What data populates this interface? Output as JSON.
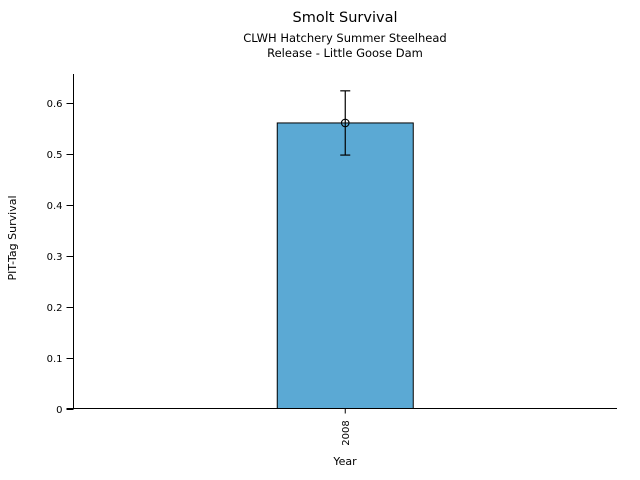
{
  "chart_data": {
    "type": "bar",
    "title": "Smolt Survival",
    "subtitle": [
      "CLWH Hatchery Summer Steelhead",
      "Release - Little Goose Dam"
    ],
    "xlabel": "Year",
    "ylabel": "PIT-Tag Survival",
    "categories": [
      "2008"
    ],
    "series": [
      {
        "name": "PIT-Tag Survival",
        "values": [
          0.56
        ]
      }
    ],
    "error_bars": [
      {
        "low": 0.497,
        "high": 0.623
      }
    ],
    "point_marker": "open-circle",
    "yticks": [
      0,
      0.1,
      0.2,
      0.3,
      0.4,
      0.5,
      0.6
    ],
    "ytick_labels": [
      "0",
      "0.1",
      "0.2",
      "0.3",
      "0.4",
      "0.5",
      "0.6"
    ],
    "ylim": [
      0,
      0.656
    ],
    "grid": false,
    "legend": "none",
    "x_tick_label_rotation_deg": -90,
    "bar_color": "#5BA9D4",
    "bar_edge_color": "#000000",
    "axis_color": "#000000",
    "background_color": "#FFFFFF"
  }
}
